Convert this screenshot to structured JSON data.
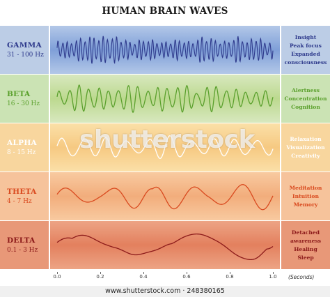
{
  "title": "HUMAN BRAIN WAVES",
  "bands": [
    {
      "name": "GAMMA",
      "freq": "31 - 100 Hz",
      "desc": [
        "Insight",
        "Peak focus",
        "Expanded",
        "consciousness"
      ],
      "color": "#2e3a8c",
      "leftBg": "#bccde6",
      "centerTop": "#b3c8e8",
      "centerMid": "#7f9fd8",
      "rightBg": "#bccde6",
      "wave_cycles": 48,
      "amplitude": 0.7
    },
    {
      "name": "BETA",
      "freq": "16 - 30 Hz",
      "desc": [
        "Alertness",
        "Concentration",
        "Cognition"
      ],
      "color": "#5aa02c",
      "leftBg": "#cbe3b4",
      "centerTop": "#d8e8bf",
      "centerMid": "#bcd98f",
      "rightBg": "#cbe3b4",
      "wave_cycles": 22,
      "amplitude": 0.7
    },
    {
      "name": "ALPHA",
      "freq": "8 - 15 Hz",
      "desc": [
        "Relaxation",
        "Visualization",
        "Creativity"
      ],
      "color": "#ffffff",
      "leftBg": "#f8d69e",
      "centerTop": "#fbe0a8",
      "centerMid": "#f6c982",
      "rightBg": "#f8d69e",
      "wave_cycles": 10,
      "amplitude": 0.75
    },
    {
      "name": "THETA",
      "freq": "4 - 7 Hz",
      "desc": [
        "Meditation",
        "Intuition",
        "Memory"
      ],
      "color": "#d94a1f",
      "leftBg": "#f6c39b",
      "centerTop": "#f8caa0",
      "centerMid": "#f2ad7c",
      "rightBg": "#f6c39b",
      "wave_cycles": 5,
      "amplitude": 0.7
    },
    {
      "name": "DELTA",
      "freq": "0.1 - 3 Hz",
      "desc": [
        "Detached",
        "awareness",
        "Healing",
        "Sleep"
      ],
      "color": "#8c1a1a",
      "leftBg": "#e89878",
      "centerTop": "#eda485",
      "centerMid": "#e3805e",
      "rightBg": "#e89878",
      "wave_cycles": 2,
      "amplitude": 0.8
    }
  ],
  "axis": {
    "ticks": [
      "0.0",
      "0.2",
      "0.4",
      "0.6",
      "0.8",
      "1.0"
    ],
    "unit": "(Seconds)"
  },
  "watermark": "shutterstock",
  "credit": "www.shutterstock.com · 248380165"
}
